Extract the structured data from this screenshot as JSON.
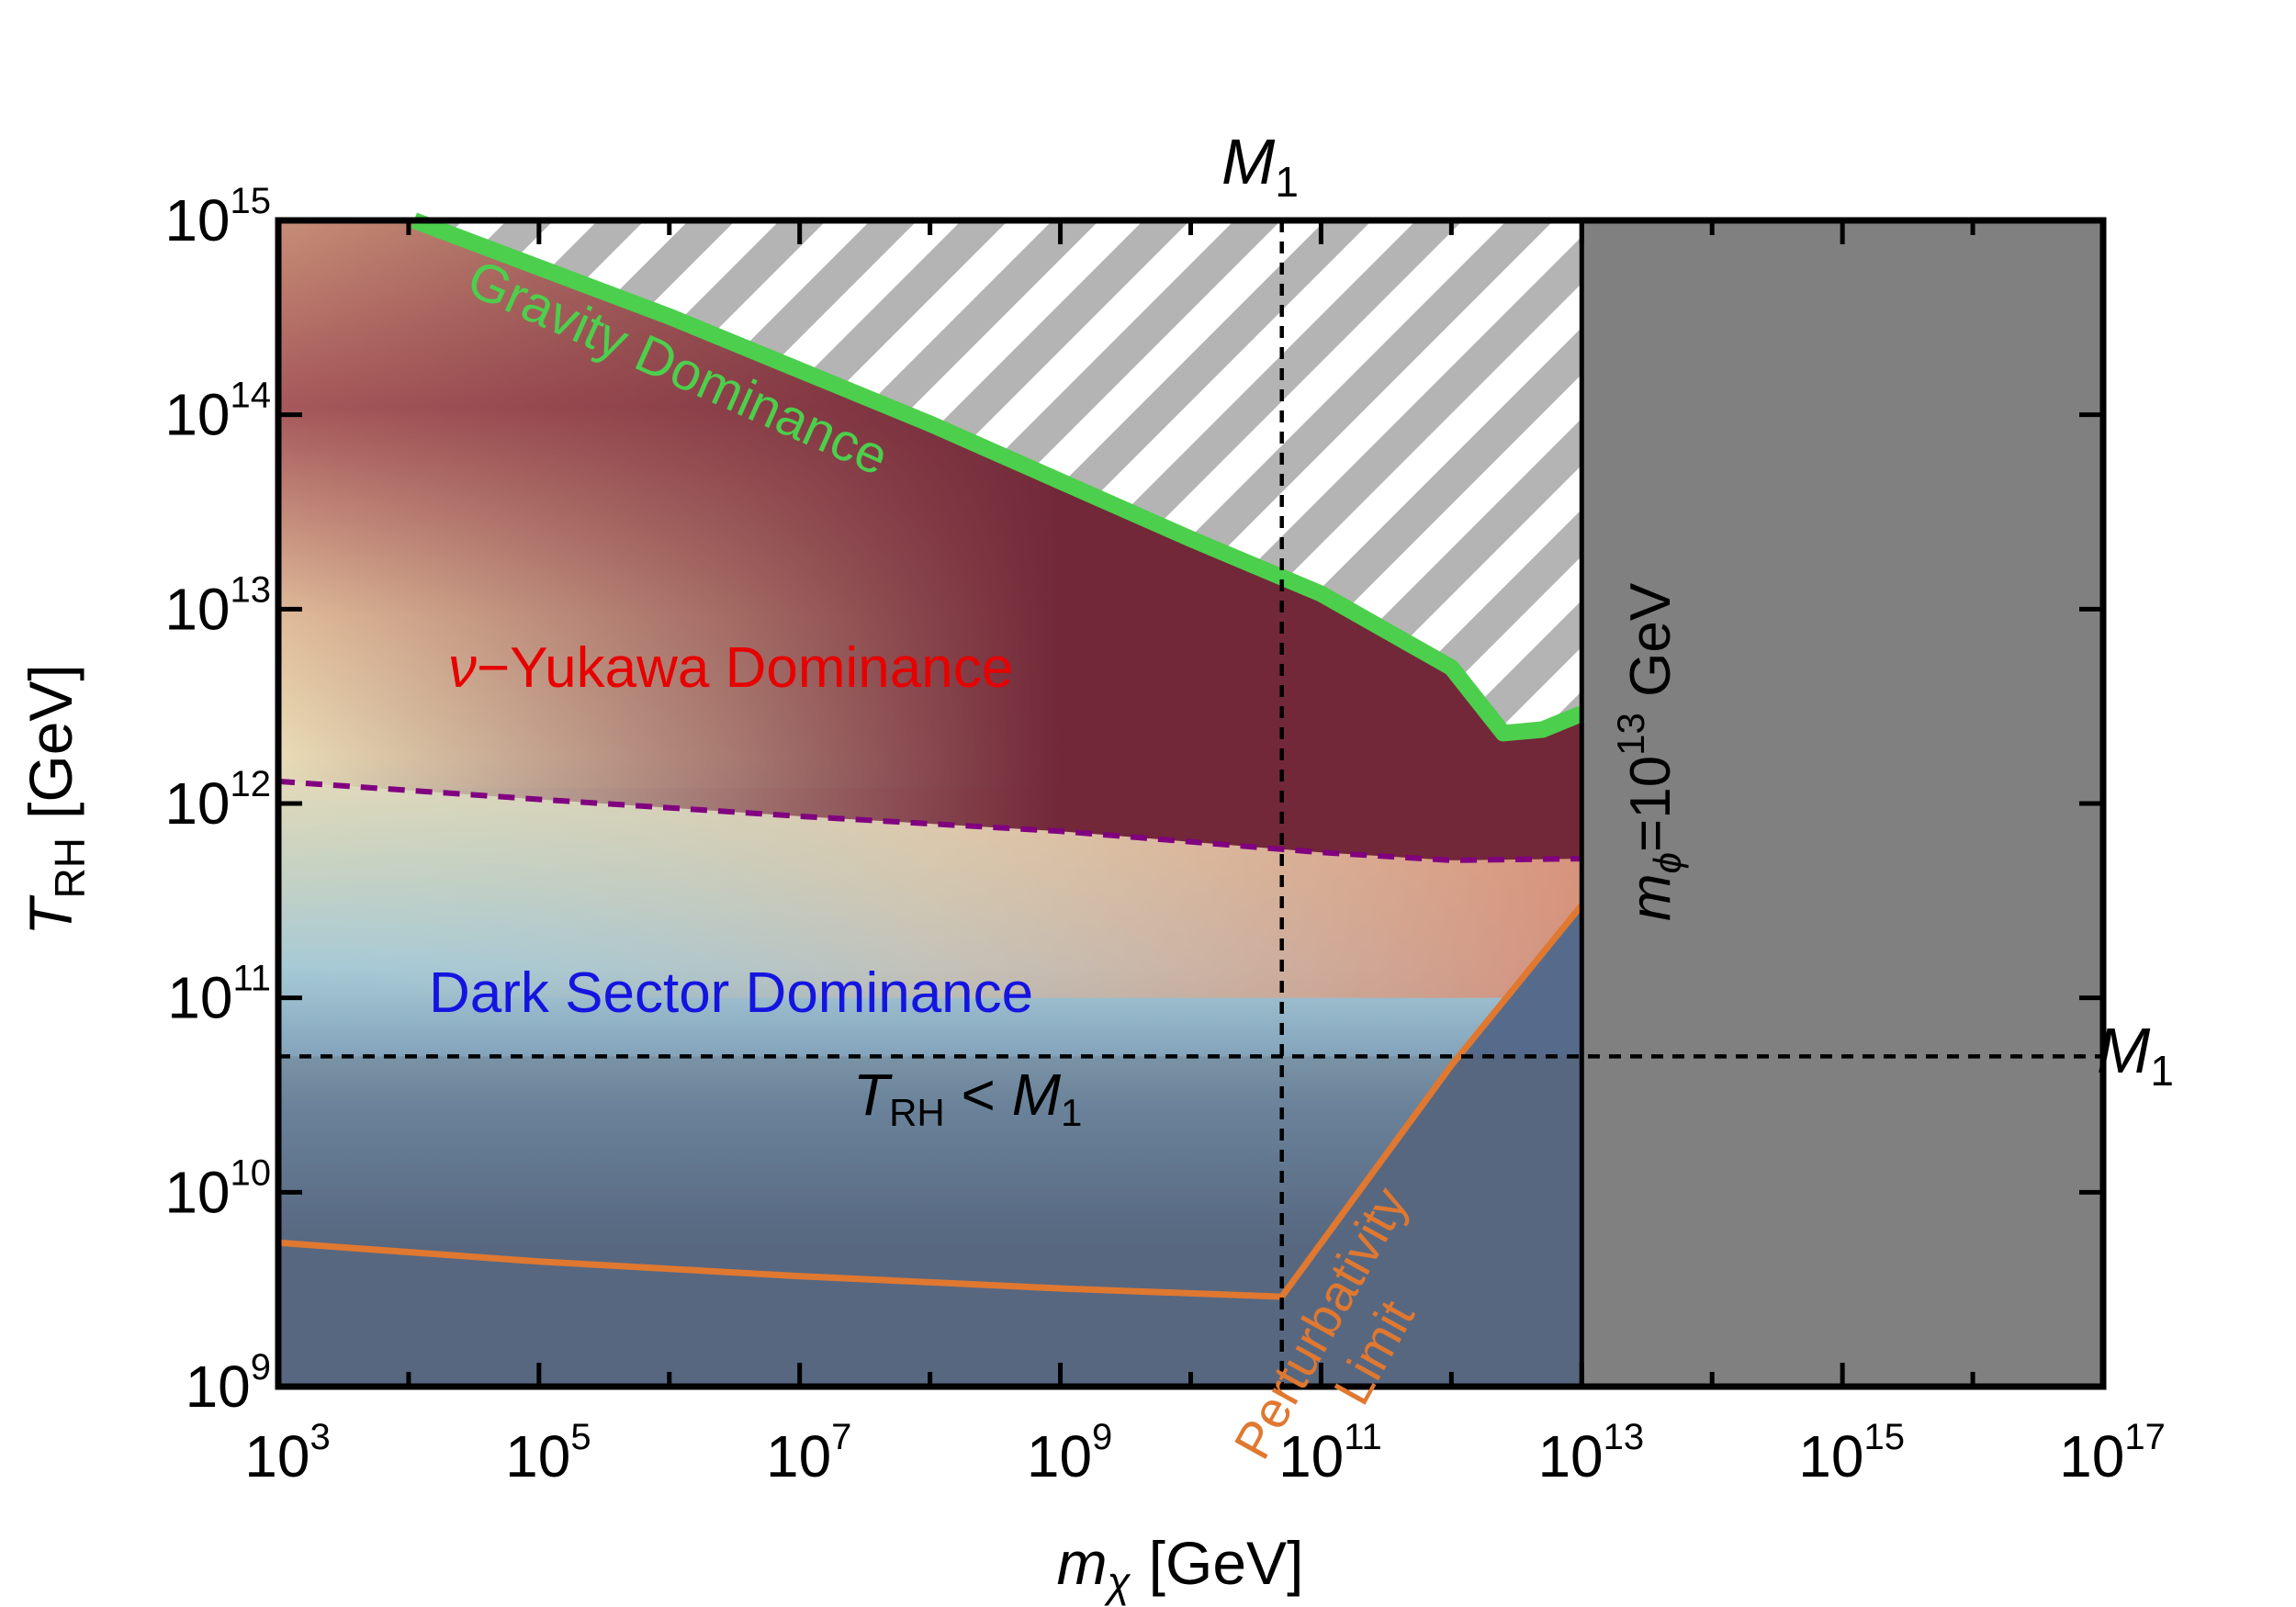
{
  "chart_data": {
    "type": "area",
    "title": "",
    "xlabel": {
      "symbol": "m",
      "sub": "χ",
      "unit": "[GeV]"
    },
    "ylabel": {
      "symbol": "T",
      "sub": "RH",
      "unit": "[GeV]"
    },
    "xscale": "log",
    "yscale": "log",
    "xlim": [
      1000.0,
      1e+17
    ],
    "ylim": [
      1000000000.0,
      1000000000000000.0
    ],
    "x_ticks": [
      {
        "base": "10",
        "exp": "3",
        "value": 1000.0
      },
      {
        "base": "10",
        "exp": "5",
        "value": 100000.0
      },
      {
        "base": "10",
        "exp": "7",
        "value": 10000000.0
      },
      {
        "base": "10",
        "exp": "9",
        "value": 1000000000.0
      },
      {
        "base": "10",
        "exp": "11",
        "value": 100000000000.0
      },
      {
        "base": "10",
        "exp": "13",
        "value": 10000000000000.0
      },
      {
        "base": "10",
        "exp": "15",
        "value": 1000000000000000.0
      },
      {
        "base": "10",
        "exp": "17",
        "value": 1e+17
      }
    ],
    "y_ticks": [
      {
        "base": "10",
        "exp": "9",
        "value": 1000000000.0
      },
      {
        "base": "10",
        "exp": "10",
        "value": 10000000000.0
      },
      {
        "base": "10",
        "exp": "11",
        "value": 100000000000.0
      },
      {
        "base": "10",
        "exp": "12",
        "value": 1000000000000.0
      },
      {
        "base": "10",
        "exp": "13",
        "value": 10000000000000.0
      },
      {
        "base": "10",
        "exp": "14",
        "value": 100000000000000.0
      },
      {
        "base": "10",
        "exp": "15",
        "value": 1000000000000000.0
      }
    ],
    "M1_value": 50000000000.0,
    "mphi_value": 10000000000000.0,
    "series": [
      {
        "name": "Gravity Dominance boundary",
        "color": "#4ccf4c",
        "x": [
          11000.0,
          1000000.0,
          100000000.0,
          10000000000.0,
          100000000000.0,
          1000000000000.0,
          2500000000000.0,
          5000000000000.0,
          10000000000000.0
        ],
        "y": [
          1000000000000000.0,
          320000000000000.0,
          90000000000000.0,
          23000000000000.0,
          12000000000000.0,
          5000000000000.0,
          2300000000000.0,
          2400000000000.0,
          2900000000000.0
        ]
      },
      {
        "name": "neutrino-Yukawa / Dark Sector boundary",
        "color": "#800080",
        "style": "dashed",
        "x": [
          1000.0,
          100000.0,
          10000000.0,
          1000000000.0,
          100000000000.0,
          1000000000000.0,
          10000000000000.0
        ],
        "y": [
          1300000000000.0,
          1050000000000.0,
          860000000000.0,
          720000000000.0,
          560000000000.0,
          510000000000.0,
          520000000000.0
        ]
      },
      {
        "name": "Perturbativity Limit",
        "color": "#e07830",
        "x": [
          1000.0,
          100000.0,
          10000000.0,
          1000000000.0,
          50000000000.0,
          1000000000000.0,
          10000000000000.0
        ],
        "y": [
          5500000000.0,
          4400000000.0,
          3700000000.0,
          3200000000.0,
          2900000000.0,
          45000000000.0,
          300000000000.0
        ]
      }
    ],
    "annotations": {
      "gravity": "Gravity Dominance",
      "yukawa_prefix": "ν",
      "yukawa_rest": "−Yukawa Dominance",
      "dark_sector": "Dark Sector Dominance",
      "trh_lt_m1": {
        "t": "T",
        "sub": "RH",
        "mid": " < ",
        "m": "M",
        "msub": "1"
      },
      "perturbativity_line1": "Perturbativity",
      "perturbativity_line2": "Limit",
      "m1_top": {
        "m": "M",
        "sub": "1"
      },
      "m1_right": {
        "m": "M",
        "sub": "1"
      },
      "mphi": {
        "m": "m",
        "sub": "ϕ",
        "eq": "=10",
        "exp": "13",
        "unit": " GeV"
      }
    },
    "colors": {
      "gravity_line": "#4ccf4c",
      "yukawa_text": "#e60000",
      "dark_sector_text": "#1414e0",
      "perturbativity": "#e07830",
      "dashed_purple": "#800080",
      "excluded_gray": "#808080",
      "hatch_gray": "#b4b4b4",
      "deep_red": "#722838",
      "slate_blue": "#566b8b"
    }
  }
}
